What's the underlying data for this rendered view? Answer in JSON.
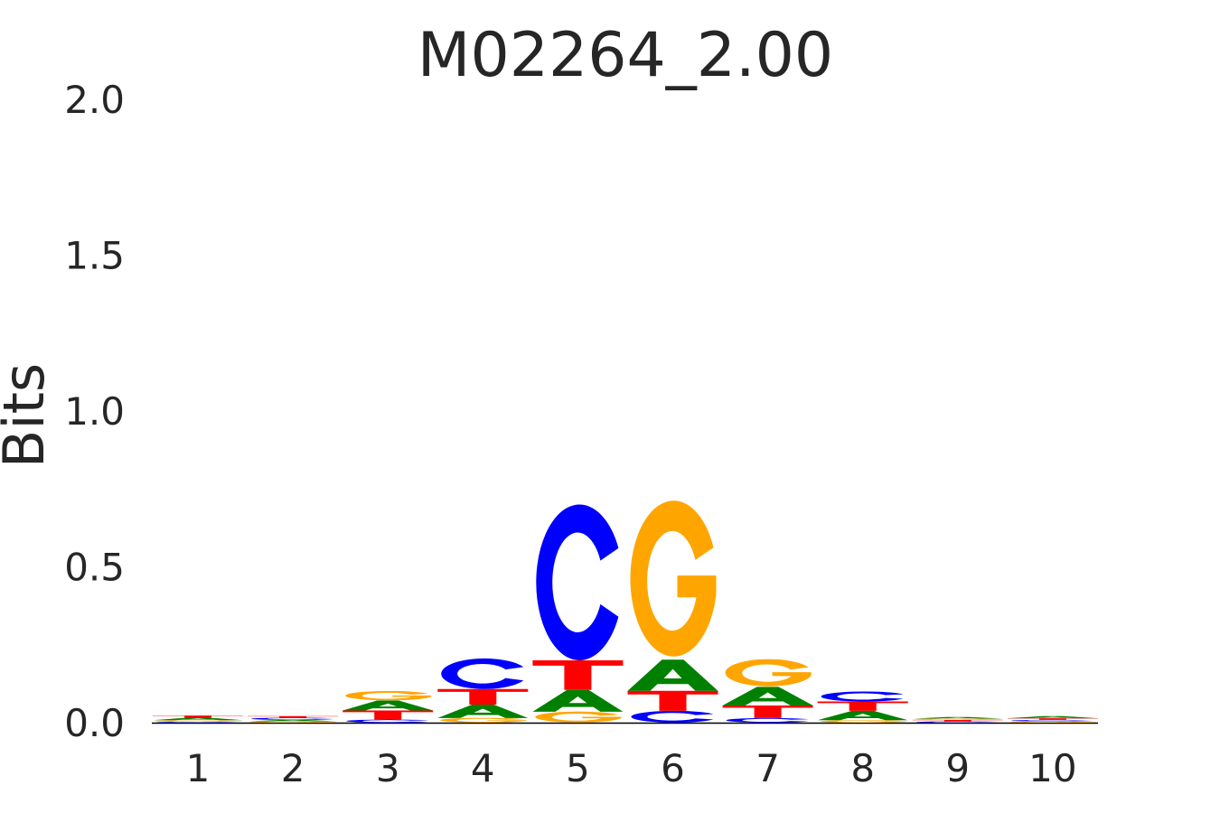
{
  "chart_data": {
    "type": "sequence-logo",
    "title": "M02264_2.00",
    "xlabel": "",
    "ylabel": "Bits",
    "ylim": [
      0,
      2.0
    ],
    "yticks": [
      "0.0",
      "0.5",
      "1.0",
      "1.5",
      "2.0"
    ],
    "ytick_values": [
      0,
      0.5,
      1.0,
      1.5,
      2.0
    ],
    "xticks": [
      "1",
      "2",
      "3",
      "4",
      "5",
      "6",
      "7",
      "8",
      "9",
      "10"
    ],
    "grid": false,
    "colors": {
      "A": "#008000",
      "C": "#0000ff",
      "G": "#ffa500",
      "T": "#ff0000"
    },
    "positions": [
      {
        "pos": 1,
        "stack": [
          [
            "C",
            0.003
          ],
          [
            "G",
            0.005
          ],
          [
            "A",
            0.008
          ],
          [
            "T",
            0.007
          ]
        ]
      },
      {
        "pos": 2,
        "stack": [
          [
            "G",
            0.004
          ],
          [
            "A",
            0.005
          ],
          [
            "C",
            0.007
          ],
          [
            "T",
            0.005
          ]
        ]
      },
      {
        "pos": 3,
        "stack": [
          [
            "C",
            0.01
          ],
          [
            "T",
            0.029
          ],
          [
            "A",
            0.032
          ],
          [
            "G",
            0.03
          ]
        ]
      },
      {
        "pos": 4,
        "stack": [
          [
            "G",
            0.015
          ],
          [
            "A",
            0.043
          ],
          [
            "T",
            0.05
          ],
          [
            "C",
            0.098
          ]
        ]
      },
      {
        "pos": 5,
        "stack": [
          [
            "G",
            0.035
          ],
          [
            "A",
            0.07
          ],
          [
            "T",
            0.095
          ],
          [
            "C",
            0.5
          ]
        ]
      },
      {
        "pos": 6,
        "stack": [
          [
            "C",
            0.038
          ],
          [
            "T",
            0.064
          ],
          [
            "A",
            0.1
          ],
          [
            "G",
            0.5
          ]
        ]
      },
      {
        "pos": 7,
        "stack": [
          [
            "C",
            0.015
          ],
          [
            "T",
            0.04
          ],
          [
            "A",
            0.06
          ],
          [
            "G",
            0.087
          ]
        ]
      },
      {
        "pos": 8,
        "stack": [
          [
            "G",
            0.008
          ],
          [
            "A",
            0.03
          ],
          [
            "T",
            0.03
          ],
          [
            "C",
            0.032
          ]
        ]
      },
      {
        "pos": 9,
        "stack": [
          [
            "C",
            0.004
          ],
          [
            "T",
            0.005
          ],
          [
            "G",
            0.004
          ],
          [
            "A",
            0.005
          ]
        ]
      },
      {
        "pos": 10,
        "stack": [
          [
            "G",
            0.004
          ],
          [
            "C",
            0.005
          ],
          [
            "T",
            0.005
          ],
          [
            "A",
            0.007
          ]
        ]
      }
    ]
  }
}
